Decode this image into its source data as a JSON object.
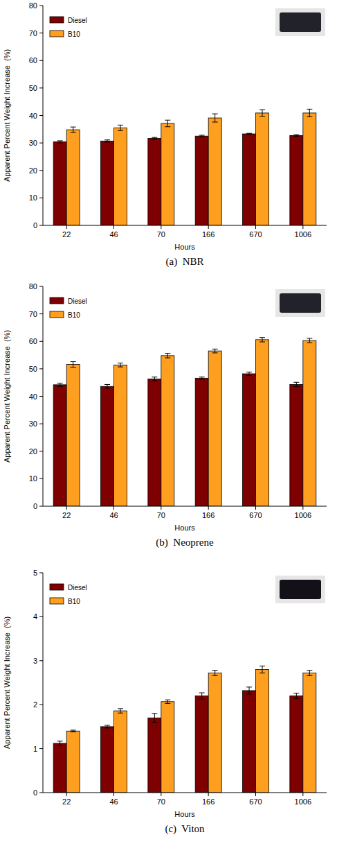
{
  "chart_data": [
    {
      "type": "bar",
      "title": "(a)  NBR",
      "x_label": "Hours",
      "y_label": "Apparent Percent Weight Increase  (%)",
      "categories": [
        "22",
        "46",
        "70",
        "166",
        "670",
        "1006"
      ],
      "series": [
        {
          "name": "Diesel",
          "color": "#7f0000",
          "values": [
            30.4,
            30.7,
            31.7,
            32.5,
            33.3,
            32.7
          ],
          "errors": [
            0.4,
            0.4,
            0.3,
            0.3,
            0.2,
            0.3
          ]
        },
        {
          "name": "B10",
          "color": "#ff9f1f",
          "values": [
            34.8,
            35.5,
            37.1,
            39.1,
            40.9,
            40.9
          ],
          "errors": [
            1.0,
            1.0,
            1.2,
            1.5,
            1.2,
            1.4
          ]
        }
      ],
      "ylim": [
        0,
        80
      ],
      "yticks": [
        0,
        10,
        20,
        30,
        40,
        50,
        60,
        70,
        80
      ],
      "legend": "upper left"
    },
    {
      "type": "bar",
      "title": "(b)  Neoprene",
      "x_label": "Hours",
      "y_label": "Apparent Percent Weight Increase  (%)",
      "categories": [
        "22",
        "46",
        "70",
        "166",
        "670",
        "1006"
      ],
      "series": [
        {
          "name": "Diesel",
          "color": "#7f0000",
          "values": [
            44.2,
            43.6,
            46.3,
            46.6,
            48.2,
            44.3
          ],
          "errors": [
            0.6,
            0.7,
            0.7,
            0.4,
            0.6,
            0.8
          ]
        },
        {
          "name": "B10",
          "color": "#ff9f1f",
          "values": [
            51.6,
            51.4,
            54.8,
            56.5,
            60.6,
            60.3
          ],
          "errors": [
            1.0,
            0.7,
            0.8,
            0.7,
            0.8,
            0.8
          ]
        }
      ],
      "ylim": [
        0,
        80
      ],
      "yticks": [
        0,
        10,
        20,
        30,
        40,
        50,
        60,
        70,
        80
      ],
      "legend": "upper left"
    },
    {
      "type": "bar",
      "title": "(c)  Viton",
      "x_label": "Hours",
      "y_label": "Apparent Percent Weight Increase  (%)",
      "categories": [
        "22",
        "46",
        "70",
        "166",
        "670",
        "1006"
      ],
      "series": [
        {
          "name": "Diesel",
          "color": "#7f0000",
          "values": [
            1.12,
            1.5,
            1.7,
            2.2,
            2.32,
            2.2
          ],
          "errors": [
            0.05,
            0.03,
            0.1,
            0.07,
            0.08,
            0.06
          ]
        },
        {
          "name": "B10",
          "color": "#ff9f1f",
          "values": [
            1.4,
            1.86,
            2.07,
            2.72,
            2.8,
            2.72
          ],
          "errors": [
            0.02,
            0.05,
            0.04,
            0.06,
            0.08,
            0.06
          ]
        }
      ],
      "ylim": [
        0,
        5
      ],
      "yticks": [
        0,
        1,
        2,
        3,
        4,
        5
      ],
      "legend": "upper left"
    }
  ]
}
